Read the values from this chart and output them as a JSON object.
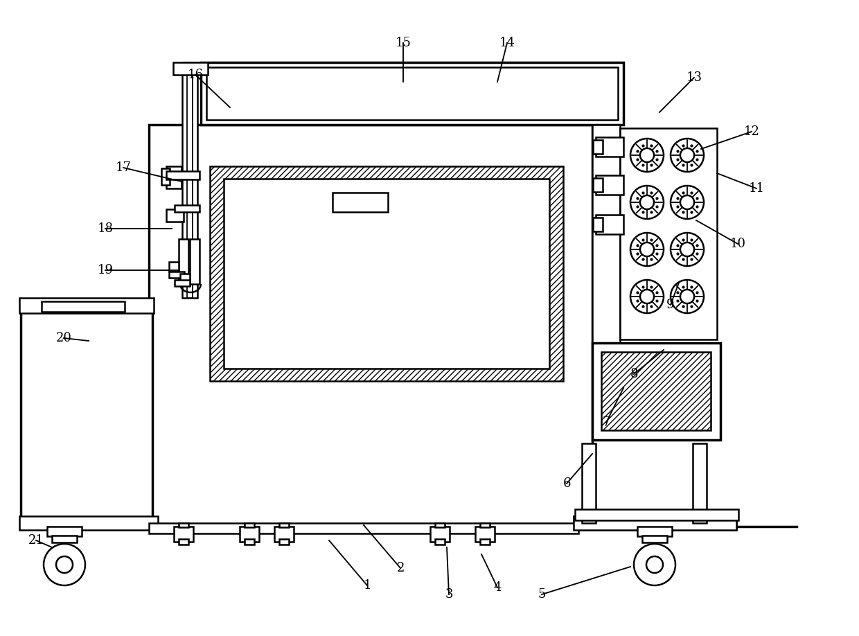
{
  "bg_color": "#ffffff",
  "line_color": "#000000",
  "line_width": 1.8,
  "thick_line": 2.5,
  "fig_width": 12.4,
  "fig_height": 9.18
}
